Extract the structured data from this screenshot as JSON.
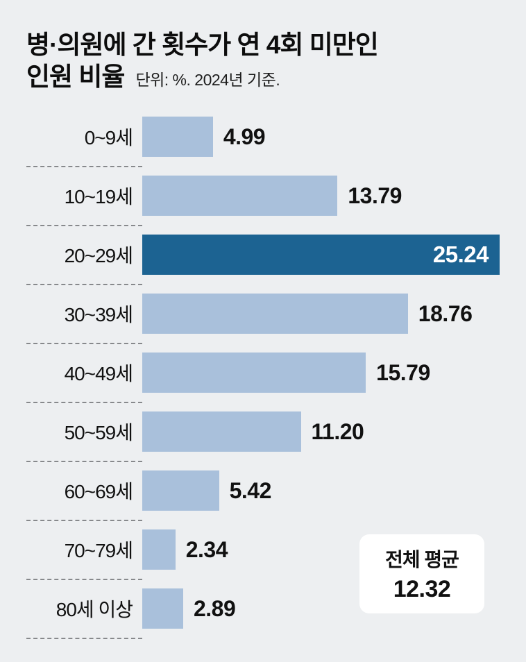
{
  "page": {
    "background": "#edeff1",
    "title_line1": "병·의원에 간 횟수가 연 4회 미만인",
    "title_line2": "인원 비율",
    "subtitle": "단위: %. 2024년 기준."
  },
  "average_badge": {
    "label": "전체 평균",
    "value": "12.32"
  },
  "chart_data": {
    "type": "bar",
    "orientation": "horizontal",
    "title": "병·의원에 간 횟수가 연 4회 미만인 인원 비율",
    "unit_note": "단위: %. 2024년 기준.",
    "categories": [
      "0~9세",
      "10~19세",
      "20~29세",
      "30~39세",
      "40~49세",
      "50~59세",
      "60~69세",
      "70~79세",
      "80세 이상"
    ],
    "values": [
      4.99,
      13.79,
      25.24,
      18.76,
      15.79,
      11.2,
      5.42,
      2.34,
      2.89
    ],
    "value_labels": [
      "4.99",
      "13.79",
      "25.24",
      "18.76",
      "15.79",
      "11.20",
      "5.42",
      "2.34",
      "2.89"
    ],
    "highlight_index": 2,
    "xlim": [
      0,
      25.24
    ],
    "grid": false,
    "legend": "none",
    "colors": {
      "bar": "#a9c0db",
      "highlight_bar": "#1c6392",
      "text": "#111111",
      "background": "#edeff1",
      "badge_background": "#ffffff"
    },
    "average": {
      "label": "전체 평균",
      "value": 12.32
    }
  }
}
